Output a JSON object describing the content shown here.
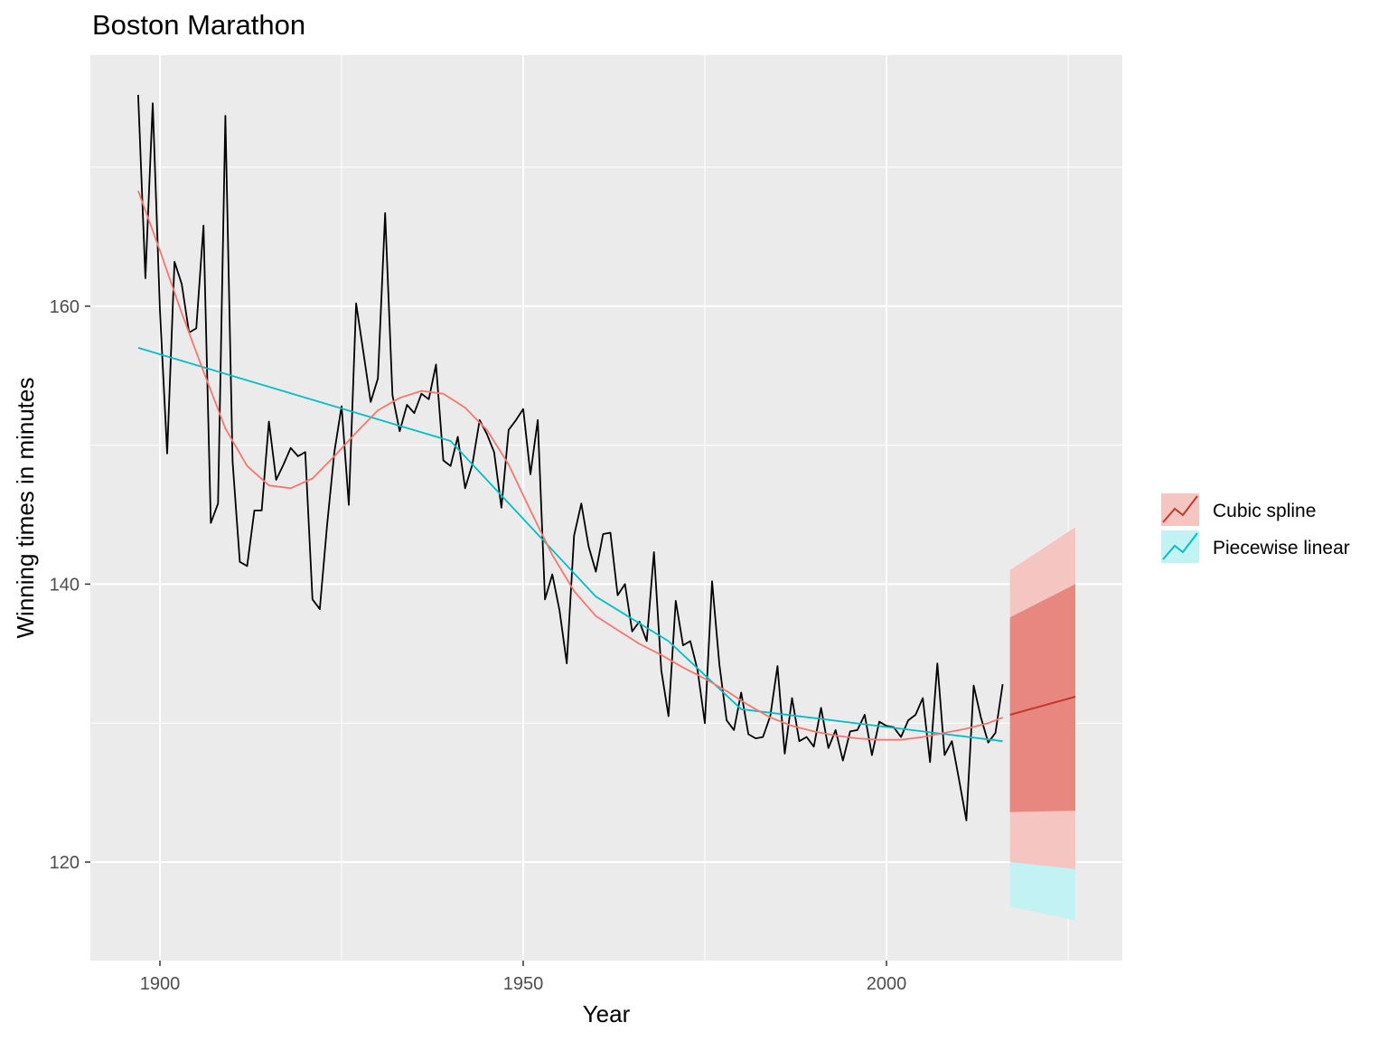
{
  "chart_data": {
    "type": "line",
    "title": "Boston Marathon",
    "xlabel": "Year",
    "ylabel": "Winning times in minutes",
    "xlim": [
      1890,
      2033
    ],
    "ylim": [
      113,
      178
    ],
    "x_ticks": [
      1900,
      1950,
      2000
    ],
    "y_ticks": [
      120,
      140,
      160
    ],
    "grid": true,
    "legend_position": "right",
    "colors": {
      "panel": "#ebebeb",
      "grid": "#ffffff",
      "observed": "#000000",
      "cubic_spline": "#f8766d",
      "piecewise_linear": "#00bfc4",
      "spline_band80": "#e8877f",
      "spline_band95": "#f4c5c1",
      "linear_band95": "#c3f2f4",
      "forecast_line": "#c0392b"
    },
    "observed": {
      "x": [
        1897,
        1898,
        1899,
        1900,
        1901,
        1902,
        1903,
        1904,
        1905,
        1906,
        1907,
        1908,
        1909,
        1910,
        1911,
        1912,
        1913,
        1914,
        1915,
        1916,
        1917,
        1918,
        1919,
        1920,
        1921,
        1922,
        1923,
        1924,
        1925,
        1926,
        1927,
        1928,
        1929,
        1930,
        1931,
        1932,
        1933,
        1934,
        1935,
        1936,
        1937,
        1938,
        1939,
        1940,
        1941,
        1942,
        1943,
        1944,
        1945,
        1946,
        1947,
        1948,
        1949,
        1950,
        1951,
        1952,
        1953,
        1954,
        1955,
        1956,
        1957,
        1958,
        1959,
        1960,
        1961,
        1962,
        1963,
        1964,
        1965,
        1966,
        1967,
        1968,
        1969,
        1970,
        1971,
        1972,
        1973,
        1974,
        1975,
        1976,
        1977,
        1978,
        1979,
        1980,
        1981,
        1982,
        1983,
        1984,
        1985,
        1986,
        1987,
        1988,
        1989,
        1990,
        1991,
        1992,
        1993,
        1994,
        1995,
        1996,
        1997,
        1998,
        1999,
        2000,
        2001,
        2002,
        2003,
        2004,
        2005,
        2006,
        2007,
        2008,
        2009,
        2010,
        2011,
        2012,
        2013,
        2014,
        2015,
        2016
      ],
      "y": [
        175.2,
        162.0,
        174.6,
        159.7,
        149.4,
        163.2,
        161.6,
        158.1,
        158.4,
        165.8,
        144.4,
        145.8,
        173.7,
        148.8,
        141.6,
        141.3,
        145.3,
        145.3,
        151.7,
        147.5,
        148.6,
        149.8,
        149.2,
        149.5,
        138.9,
        138.2,
        144.2,
        149.5,
        152.8,
        145.7,
        160.2,
        156.7,
        153.1,
        154.8,
        166.7,
        153.6,
        151.0,
        152.9,
        152.3,
        153.7,
        153.3,
        155.8,
        148.9,
        148.5,
        150.6,
        146.9,
        148.6,
        151.8,
        150.8,
        149.5,
        145.5,
        151.1,
        151.8,
        152.6,
        147.9,
        151.8,
        138.9,
        140.7,
        138.1,
        134.3,
        143.5,
        145.8,
        142.7,
        140.9,
        143.6,
        143.7,
        139.2,
        140.0,
        136.6,
        137.3,
        135.9,
        142.3,
        133.8,
        130.5,
        138.8,
        135.6,
        135.9,
        133.8,
        130.0,
        140.2,
        134.2,
        130.2,
        129.5,
        132.2,
        129.2,
        128.9,
        129.0,
        130.5,
        134.1,
        127.8,
        131.8,
        128.7,
        129.0,
        128.3,
        131.1,
        128.2,
        129.5,
        127.3,
        129.4,
        129.5,
        130.6,
        127.7,
        130.1,
        129.8,
        129.7,
        129.0,
        130.2,
        130.6,
        131.8,
        127.2,
        134.3,
        127.7,
        128.7,
        125.9,
        123.0,
        132.7,
        130.4,
        128.6,
        129.3,
        132.8
      ]
    },
    "series": [
      {
        "name": "Cubic spline",
        "x": [
          1897,
          1900,
          1903,
          1906,
          1909,
          1912,
          1915,
          1918,
          1921,
          1924,
          1927,
          1930,
          1933,
          1936,
          1939,
          1942,
          1945,
          1948,
          1951,
          1954,
          1957,
          1960,
          1963,
          1966,
          1969,
          1972,
          1975,
          1978,
          1981,
          1984,
          1987,
          1990,
          1993,
          1996,
          1999,
          2002,
          2005,
          2008,
          2011,
          2014,
          2016
        ],
        "y": [
          168.3,
          164.0,
          159.5,
          155.3,
          151.2,
          148.5,
          147.1,
          146.9,
          147.6,
          149.2,
          150.9,
          152.5,
          153.4,
          153.9,
          153.7,
          152.7,
          151.1,
          148.6,
          145.3,
          142.1,
          139.5,
          137.7,
          136.7,
          135.7,
          134.9,
          134.0,
          133.2,
          132.3,
          131.3,
          130.4,
          129.8,
          129.4,
          129.1,
          128.9,
          128.8,
          128.8,
          129.0,
          129.3,
          129.6,
          130.0,
          130.4
        ]
      },
      {
        "name": "Piecewise linear",
        "x": [
          1897,
          1940,
          1950,
          1960,
          1970,
          1980,
          2016
        ],
        "y": [
          157.0,
          150.3,
          144.7,
          139.1,
          135.9,
          131.0,
          128.7
        ]
      }
    ],
    "forecast": {
      "x": [
        2017,
        2026
      ],
      "cubic_spline": {
        "mean": [
          130.6,
          131.9
        ],
        "lo80": [
          123.6,
          123.7
        ],
        "hi80": [
          137.6,
          140.0
        ],
        "lo95": [
          120.0,
          119.5
        ],
        "hi95": [
          141.0,
          144.1
        ]
      },
      "piecewise_linear": {
        "lo95": [
          116.8,
          115.8
        ]
      }
    }
  }
}
